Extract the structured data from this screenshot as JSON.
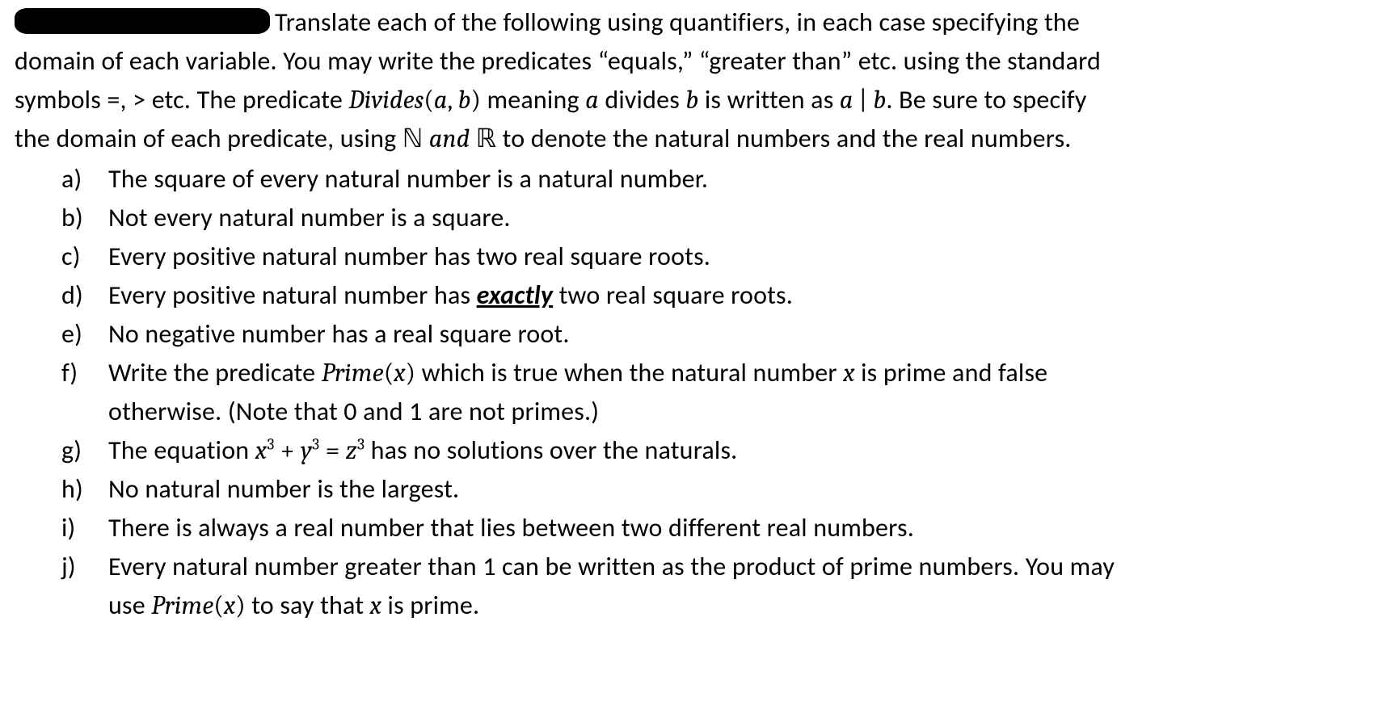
{
  "intro": {
    "l1_after_redaction": "Translate each of the following using quantifiers, in each case specifying the",
    "l2_a": "domain of each variable.  You may write the predicates “equals,” “greater than” etc. using the standard",
    "l3_a": "symbols =, > etc.  The predicate ",
    "l3_pred": "Divides",
    "l3_args_open": "(",
    "l3_arg_a": "a",
    "l3_comma": ", ",
    "l3_arg_b": "b",
    "l3_args_close": ")",
    "l3_b": " meaning ",
    "l3_mid_a": "a",
    "l3_mid_txt": " divides ",
    "l3_mid_b": "b",
    "l3_c": " is written as ",
    "l3_ab_a": "a",
    "l3_ab_bar": " | ",
    "l3_ab_b": "b",
    "l3_d": ".  Be sure to specify",
    "l4_a": "the domain of each predicate, using ",
    "l4_N": "ℕ",
    "l4_and": " and ",
    "l4_R": "ℝ",
    "l4_b": " to denote the natural numbers and the real numbers."
  },
  "items": {
    "a": {
      "marker": "a)",
      "text": "The square of every natural number is a natural number."
    },
    "b": {
      "marker": "b)",
      "text": "Not every natural number is a square."
    },
    "c": {
      "marker": "c)",
      "text": "Every positive natural number has two real square roots."
    },
    "d": {
      "marker": "d)",
      "pre": "Every positive natural number has ",
      "em": "exactly",
      "post": " two real square roots."
    },
    "e": {
      "marker": "e)",
      "text": "No negative number has a real square root."
    },
    "f": {
      "marker": "f)",
      "p1a": "Write the predicate ",
      "pred": "Prime",
      "p1b": "(",
      "argx": "x",
      "p1c": ")",
      "p1d": " which is true when the natural number ",
      "p1x2": "x",
      "p1e": " is prime and false",
      "p2": "otherwise. (Note that 0 and 1 are not primes.)"
    },
    "g": {
      "marker": "g)",
      "a": "The equation ",
      "x": "x",
      "y": "y",
      "z": "z",
      "plus": " + ",
      "eq": " = ",
      "exp": "3",
      "b": " has no solutions over the naturals."
    },
    "h": {
      "marker": "h)",
      "text": "No natural number is the largest."
    },
    "i": {
      "marker": "i)",
      "text": "There is always a real number that lies between two different real numbers."
    },
    "j": {
      "marker": "j)",
      "l1": "Every natural number greater than 1 can  be written as the product of prime numbers.  You may",
      "l2a": "use ",
      "pred": "Prime",
      "l2b": "(",
      "argx": "x",
      "l2c": ")",
      "l2d": " to say that ",
      "l2x2": "x",
      "l2e": " is prime."
    }
  }
}
